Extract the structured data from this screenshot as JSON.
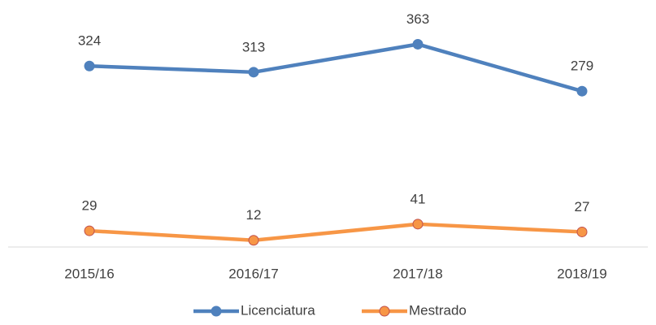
{
  "chart_data": {
    "type": "line",
    "categories": [
      "2015/16",
      "2016/17",
      "2017/18",
      "2018/19"
    ],
    "series": [
      {
        "name": "Licenciatura",
        "color": "#4f81bd",
        "marker_fill": "#4f81bd",
        "marker_stroke": "#4f81bd",
        "values": [
          324,
          313,
          363,
          279
        ]
      },
      {
        "name": "Mestrado",
        "color": "#f79646",
        "marker_fill": "#f79646",
        "marker_stroke": "#c0504d",
        "values": [
          29,
          12,
          41,
          27
        ]
      }
    ],
    "ylim": [
      0,
      400
    ],
    "legend": "bottom"
  }
}
